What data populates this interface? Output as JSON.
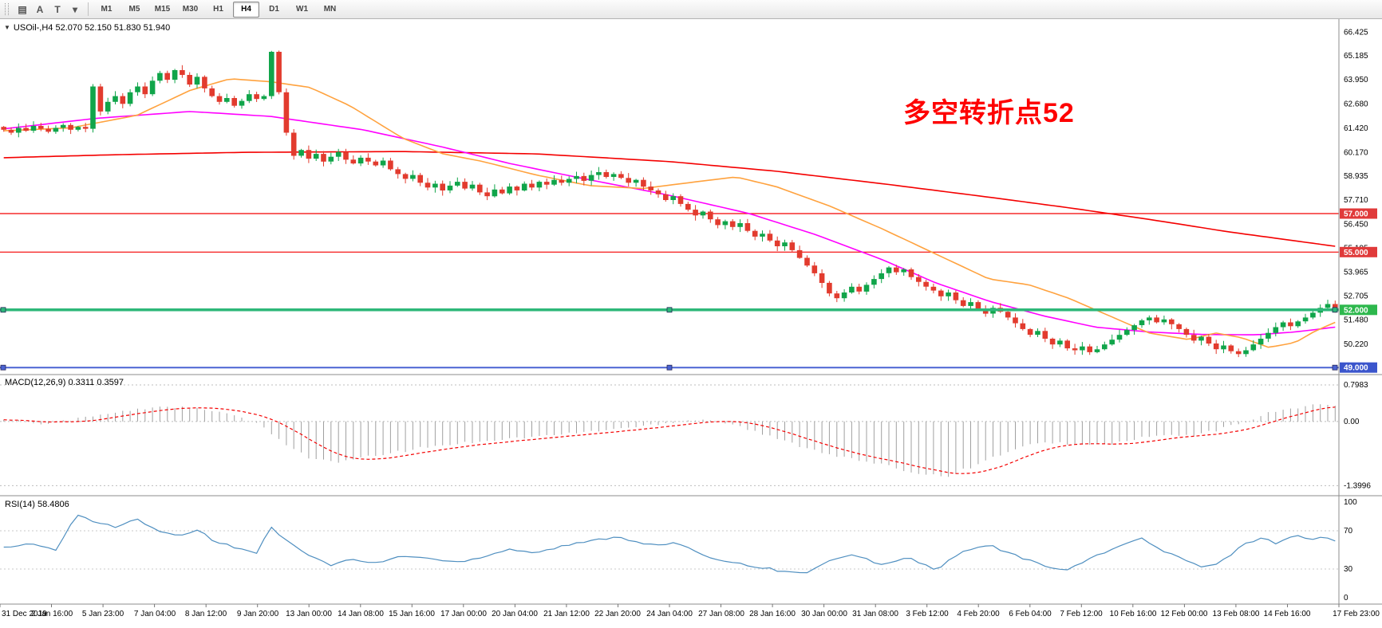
{
  "toolbar": {
    "icons": [
      {
        "name": "charts-grid-icon",
        "glyph": "▤"
      },
      {
        "name": "cursor-text-icon",
        "glyph": "A"
      },
      {
        "name": "annotate-text-icon",
        "glyph": "T"
      },
      {
        "name": "template-dropdown-icon",
        "glyph": "▾"
      }
    ],
    "timeframes": [
      "M1",
      "M5",
      "M15",
      "M30",
      "H1",
      "H4",
      "D1",
      "W1",
      "MN"
    ],
    "active_timeframe": "H4"
  },
  "chart": {
    "collapse_icon": "▼",
    "title": "USOil-,H4 52.070 52.150 51.830 51.940",
    "annotation": {
      "text": "多空转折点52",
      "color": "#fe0000"
    },
    "macd_label": "MACD(12,26,9) 0.3311 0.3597",
    "rsi_label": "RSI(14) 58.4806",
    "y_axis_ticks": [
      "66.425",
      "65.185",
      "63.950",
      "62.680",
      "61.420",
      "60.170",
      "58.935",
      "57.710",
      "56.450",
      "55.195",
      "53.965",
      "52.705",
      "51.480",
      "50.220"
    ],
    "macd_axis": [
      "0.7983",
      "0.00",
      "-1.3996"
    ],
    "rsi_axis": [
      "100",
      "70",
      "30",
      "0"
    ],
    "price_lines": [
      {
        "label": "57.000",
        "price": 57.0,
        "type": "red"
      },
      {
        "label": "55.000",
        "price": 55.0,
        "type": "red"
      },
      {
        "label": "52.000",
        "price": 52.0,
        "type": "green"
      },
      {
        "label": "49.000",
        "price": 49.0,
        "type": "blue"
      }
    ],
    "colors": {
      "bull": "#10a54a",
      "bear": "#e23b2e",
      "ma_red": "#f40000",
      "ma_magenta": "#ff00ff",
      "ma_orange": "#ffa23e",
      "line_red": "#f40000",
      "line_green": "#2db879",
      "line_blue": "#4a63d3",
      "badge_red": "#e03a3a",
      "badge_green": "#2db84d",
      "badge_blue": "#3b55cc",
      "rsi": "#4f8fc0",
      "macd_hist": "#a0a0a0",
      "macd_signal": "#f40000"
    }
  },
  "chart_data": {
    "type": "candlestick",
    "symbol": "USOil-",
    "timeframe": "H4",
    "title": "USOil-,H4",
    "ohlc_display": {
      "open": 52.07,
      "high": 52.15,
      "low": 51.83,
      "close": 51.94
    },
    "y_range": [
      48.72,
      66.85
    ],
    "first_open": 61.5,
    "closes": [
      61.35,
      61.2,
      61.45,
      61.3,
      61.55,
      61.4,
      61.25,
      61.45,
      61.6,
      61.35,
      61.5,
      61.4,
      63.6,
      62.3,
      62.8,
      63.1,
      62.7,
      63.3,
      63.6,
      63.2,
      63.9,
      64.3,
      63.95,
      64.45,
      64.2,
      63.7,
      64.1,
      63.5,
      63.1,
      62.8,
      63.0,
      62.6,
      62.85,
      63.2,
      62.95,
      63.1,
      65.4,
      63.3,
      61.2,
      60.0,
      60.3,
      59.85,
      60.1,
      59.7,
      59.95,
      60.2,
      59.8,
      59.6,
      59.9,
      59.7,
      59.5,
      59.75,
      59.3,
      59.05,
      58.8,
      59.0,
      58.6,
      58.35,
      58.55,
      58.2,
      58.45,
      58.65,
      58.3,
      58.5,
      58.1,
      57.9,
      58.25,
      58.05,
      58.4,
      58.2,
      58.55,
      58.35,
      58.65,
      58.5,
      58.75,
      58.6,
      58.8,
      58.95,
      58.7,
      59.0,
      59.15,
      58.9,
      59.05,
      58.85,
      58.6,
      58.75,
      58.4,
      58.2,
      58.0,
      57.7,
      57.9,
      57.5,
      57.2,
      56.9,
      57.1,
      56.7,
      56.4,
      56.6,
      56.3,
      56.5,
      56.1,
      55.8,
      55.95,
      55.6,
      55.3,
      55.5,
      55.1,
      54.7,
      54.3,
      53.9,
      53.4,
      52.85,
      52.6,
      52.9,
      53.2,
      52.95,
      53.3,
      53.6,
      53.9,
      54.2,
      53.95,
      54.1,
      53.7,
      53.45,
      53.2,
      53.0,
      52.7,
      52.9,
      52.5,
      52.2,
      52.4,
      52.0,
      51.8,
      52.1,
      51.9,
      51.6,
      51.3,
      51.0,
      50.7,
      50.9,
      50.5,
      50.2,
      50.4,
      50.0,
      49.9,
      50.1,
      49.8,
      49.95,
      50.2,
      50.45,
      50.7,
      50.95,
      51.2,
      51.45,
      51.6,
      51.35,
      51.5,
      51.25,
      51.0,
      50.7,
      50.4,
      50.6,
      50.25,
      49.95,
      50.15,
      49.85,
      49.7,
      49.9,
      50.2,
      50.5,
      50.8,
      51.1,
      51.35,
      51.15,
      51.4,
      51.6,
      51.85,
      52.1,
      52.3,
      51.94
    ],
    "hlines": [
      57.0,
      55.0,
      52.0,
      49.0
    ],
    "overlays": [
      {
        "name": "ma-slow-red",
        "color_key": "ma_red",
        "points": [
          [
            0,
            59.9
          ],
          [
            0.08,
            60.05
          ],
          [
            0.18,
            60.18
          ],
          [
            0.3,
            60.22
          ],
          [
            0.4,
            60.1
          ],
          [
            0.5,
            59.7
          ],
          [
            0.58,
            59.2
          ],
          [
            0.66,
            58.55
          ],
          [
            0.74,
            57.85
          ],
          [
            0.8,
            57.3
          ],
          [
            0.86,
            56.7
          ],
          [
            0.92,
            56.05
          ],
          [
            1,
            55.3
          ]
        ]
      },
      {
        "name": "ma-medium-magenta",
        "color_key": "ma_magenta",
        "points": [
          [
            0,
            61.4
          ],
          [
            0.07,
            61.95
          ],
          [
            0.14,
            62.3
          ],
          [
            0.2,
            62.05
          ],
          [
            0.27,
            61.35
          ],
          [
            0.33,
            60.45
          ],
          [
            0.38,
            59.6
          ],
          [
            0.44,
            58.75
          ],
          [
            0.5,
            57.95
          ],
          [
            0.56,
            57.0
          ],
          [
            0.61,
            55.9
          ],
          [
            0.66,
            54.6
          ],
          [
            0.7,
            53.4
          ],
          [
            0.74,
            52.45
          ],
          [
            0.78,
            51.7
          ],
          [
            0.82,
            51.1
          ],
          [
            0.86,
            50.85
          ],
          [
            0.9,
            50.72
          ],
          [
            0.94,
            50.7
          ],
          [
            0.97,
            50.85
          ],
          [
            1,
            51.1
          ]
        ]
      },
      {
        "name": "ma-fast-orange",
        "color_key": "ma_orange",
        "points": [
          [
            0,
            61.3
          ],
          [
            0.05,
            61.45
          ],
          [
            0.1,
            62.1
          ],
          [
            0.14,
            63.4
          ],
          [
            0.17,
            64.0
          ],
          [
            0.2,
            63.85
          ],
          [
            0.23,
            63.55
          ],
          [
            0.26,
            62.6
          ],
          [
            0.3,
            60.9
          ],
          [
            0.33,
            60.1
          ],
          [
            0.36,
            59.7
          ],
          [
            0.4,
            59.0
          ],
          [
            0.44,
            58.45
          ],
          [
            0.48,
            58.3
          ],
          [
            0.52,
            58.65
          ],
          [
            0.55,
            58.9
          ],
          [
            0.58,
            58.4
          ],
          [
            0.62,
            57.4
          ],
          [
            0.66,
            56.2
          ],
          [
            0.7,
            54.9
          ],
          [
            0.74,
            53.6
          ],
          [
            0.77,
            53.3
          ],
          [
            0.8,
            52.6
          ],
          [
            0.83,
            51.7
          ],
          [
            0.86,
            50.8
          ],
          [
            0.89,
            50.45
          ],
          [
            0.91,
            50.8
          ],
          [
            0.93,
            50.55
          ],
          [
            0.95,
            50.05
          ],
          [
            0.97,
            50.3
          ],
          [
            0.985,
            50.9
          ],
          [
            1,
            51.35
          ]
        ]
      }
    ],
    "macd": {
      "params": "12,26,9",
      "main": 0.3311,
      "signal": 0.3597,
      "axis_range": [
        -1.3996,
        0.7983
      ],
      "vis_range": [
        -1.55,
        0.92
      ],
      "hist_anchors": [
        [
          0,
          0.05
        ],
        [
          0.03,
          -0.04
        ],
        [
          0.06,
          0.08
        ],
        [
          0.09,
          0.22
        ],
        [
          0.12,
          0.34
        ],
        [
          0.15,
          0.26
        ],
        [
          0.175,
          0.12
        ],
        [
          0.19,
          -0.05
        ],
        [
          0.21,
          -0.45
        ],
        [
          0.23,
          -0.8
        ],
        [
          0.25,
          -0.9
        ],
        [
          0.28,
          -0.74
        ],
        [
          0.32,
          -0.55
        ],
        [
          0.36,
          -0.42
        ],
        [
          0.4,
          -0.33
        ],
        [
          0.44,
          -0.22
        ],
        [
          0.48,
          -0.1
        ],
        [
          0.51,
          0.02
        ],
        [
          0.53,
          0.05
        ],
        [
          0.55,
          -0.08
        ],
        [
          0.57,
          -0.28
        ],
        [
          0.6,
          -0.55
        ],
        [
          0.63,
          -0.78
        ],
        [
          0.66,
          -0.95
        ],
        [
          0.69,
          -1.15
        ],
        [
          0.71,
          -1.18
        ],
        [
          0.73,
          -0.95
        ],
        [
          0.75,
          -0.7
        ],
        [
          0.77,
          -0.52
        ],
        [
          0.79,
          -0.45
        ],
        [
          0.81,
          -0.52
        ],
        [
          0.83,
          -0.5
        ],
        [
          0.85,
          -0.38
        ],
        [
          0.87,
          -0.3
        ],
        [
          0.89,
          -0.32
        ],
        [
          0.91,
          -0.2
        ],
        [
          0.93,
          -0.02
        ],
        [
          0.95,
          0.18
        ],
        [
          0.97,
          0.3
        ],
        [
          0.985,
          0.38
        ],
        [
          1,
          0.33
        ]
      ]
    },
    "rsi": {
      "period": 14,
      "value": 58.4806,
      "levels": [
        30,
        70
      ],
      "range": [
        0,
        100
      ],
      "anchors": [
        [
          0,
          52
        ],
        [
          0.02,
          56
        ],
        [
          0.04,
          50
        ],
        [
          0.055,
          87
        ],
        [
          0.07,
          79
        ],
        [
          0.085,
          74
        ],
        [
          0.1,
          82
        ],
        [
          0.115,
          70
        ],
        [
          0.13,
          64
        ],
        [
          0.145,
          71
        ],
        [
          0.16,
          58
        ],
        [
          0.175,
          52
        ],
        [
          0.19,
          47
        ],
        [
          0.2,
          74
        ],
        [
          0.215,
          58
        ],
        [
          0.23,
          44
        ],
        [
          0.245,
          34
        ],
        [
          0.26,
          40
        ],
        [
          0.28,
          36
        ],
        [
          0.3,
          44
        ],
        [
          0.32,
          41
        ],
        [
          0.34,
          37
        ],
        [
          0.36,
          43
        ],
        [
          0.38,
          51
        ],
        [
          0.4,
          47
        ],
        [
          0.42,
          54
        ],
        [
          0.44,
          59
        ],
        [
          0.46,
          64
        ],
        [
          0.475,
          59
        ],
        [
          0.49,
          54
        ],
        [
          0.505,
          58
        ],
        [
          0.52,
          47
        ],
        [
          0.54,
          39
        ],
        [
          0.56,
          34
        ],
        [
          0.58,
          29
        ],
        [
          0.6,
          25
        ],
        [
          0.62,
          38
        ],
        [
          0.64,
          45
        ],
        [
          0.66,
          34
        ],
        [
          0.68,
          42
        ],
        [
          0.7,
          29
        ],
        [
          0.72,
          48
        ],
        [
          0.74,
          55
        ],
        [
          0.76,
          44
        ],
        [
          0.78,
          34
        ],
        [
          0.8,
          29
        ],
        [
          0.82,
          44
        ],
        [
          0.84,
          55
        ],
        [
          0.855,
          62
        ],
        [
          0.87,
          49
        ],
        [
          0.885,
          41
        ],
        [
          0.9,
          31
        ],
        [
          0.915,
          38
        ],
        [
          0.93,
          55
        ],
        [
          0.945,
          63
        ],
        [
          0.955,
          57
        ],
        [
          0.97,
          66
        ],
        [
          0.98,
          60
        ],
        [
          0.99,
          64
        ],
        [
          1,
          58.5
        ]
      ]
    },
    "x_labels": [
      "31 Dec 2019",
      "2 Jan 16:00",
      "5 Jan 23:00",
      "7 Jan 04:00",
      "8 Jan 12:00",
      "9 Jan 20:00",
      "13 Jan 00:00",
      "14 Jan 08:00",
      "15 Jan 16:00",
      "17 Jan 00:00",
      "20 Jan 04:00",
      "21 Jan 12:00",
      "22 Jan 20:00",
      "24 Jan 04:00",
      "27 Jan 08:00",
      "28 Jan 16:00",
      "30 Jan 00:00",
      "31 Jan 08:00",
      "3 Feb 12:00",
      "4 Feb 20:00",
      "6 Feb 04:00",
      "7 Feb 12:00",
      "10 Feb 16:00",
      "12 Feb 00:00",
      "13 Feb 08:00",
      "14 Feb 16:00",
      "17 Feb 23:00"
    ]
  }
}
